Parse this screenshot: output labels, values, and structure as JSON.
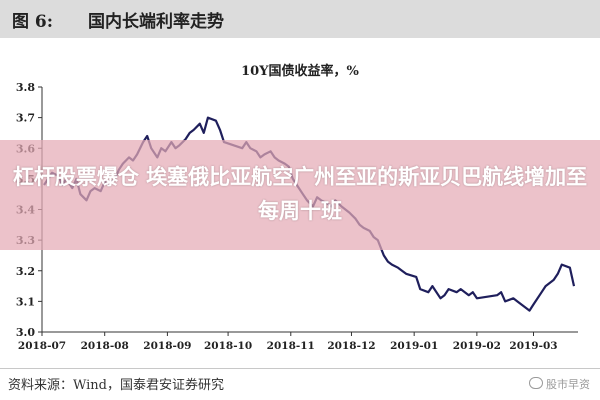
{
  "figure": {
    "label": "图 6:",
    "title": "国内长端利率走势"
  },
  "chart_data": {
    "type": "line",
    "title": "10Y国债收益率，%",
    "xlabel": "",
    "ylabel": "",
    "ylim": [
      3.0,
      3.8
    ],
    "yticks": [
      "3.0",
      "3.1",
      "3.2",
      "3.3",
      "3.4",
      "3.5",
      "3.6",
      "3.7",
      "3.8"
    ],
    "xticks": [
      "2018-07",
      "2018-08",
      "2018-09",
      "2018-10",
      "2018-11",
      "2018-12",
      "2019-01",
      "2019-02",
      "2019-03"
    ],
    "grid": false,
    "line_color": "#1f1f5c",
    "series": [
      {
        "name": "",
        "x": [
          "2018-07-02",
          "2018-07-04",
          "2018-07-06",
          "2018-07-09",
          "2018-07-11",
          "2018-07-13",
          "2018-07-16",
          "2018-07-18",
          "2018-07-20",
          "2018-07-23",
          "2018-07-25",
          "2018-07-27",
          "2018-07-30",
          "2018-08-01",
          "2018-08-03",
          "2018-08-06",
          "2018-08-08",
          "2018-08-10",
          "2018-08-13",
          "2018-08-15",
          "2018-08-17",
          "2018-08-20",
          "2018-08-22",
          "2018-08-24",
          "2018-08-27",
          "2018-08-29",
          "2018-08-31",
          "2018-09-03",
          "2018-09-05",
          "2018-09-07",
          "2018-09-10",
          "2018-09-12",
          "2018-09-14",
          "2018-09-17",
          "2018-09-19",
          "2018-09-21",
          "2018-09-25",
          "2018-09-27",
          "2018-09-29",
          "2018-10-08",
          "2018-10-10",
          "2018-10-12",
          "2018-10-15",
          "2018-10-17",
          "2018-10-19",
          "2018-10-22",
          "2018-10-24",
          "2018-10-26",
          "2018-10-29",
          "2018-10-31",
          "2018-11-02",
          "2018-11-05",
          "2018-11-07",
          "2018-11-09",
          "2018-11-12",
          "2018-11-14",
          "2018-11-16",
          "2018-11-19",
          "2018-11-21",
          "2018-11-23",
          "2018-11-26",
          "2018-11-28",
          "2018-11-30",
          "2018-12-03",
          "2018-12-05",
          "2018-12-07",
          "2018-12-10",
          "2018-12-12",
          "2018-12-14",
          "2018-12-17",
          "2018-12-19",
          "2018-12-21",
          "2018-12-24",
          "2018-12-26",
          "2018-12-28",
          "2019-01-02",
          "2019-01-04",
          "2019-01-08",
          "2019-01-10",
          "2019-01-14",
          "2019-01-16",
          "2019-01-18",
          "2019-01-22",
          "2019-01-24",
          "2019-01-28",
          "2019-01-30",
          "2019-02-01",
          "2019-02-11",
          "2019-02-13",
          "2019-02-15",
          "2019-02-19",
          "2019-02-21",
          "2019-02-25",
          "2019-02-27",
          "2019-03-01",
          "2019-03-05",
          "2019-03-07",
          "2019-03-11",
          "2019-03-13",
          "2019-03-15",
          "2019-03-19",
          "2019-03-21"
        ],
        "values": [
          3.48,
          3.5,
          3.52,
          3.51,
          3.48,
          3.5,
          3.47,
          3.5,
          3.45,
          3.43,
          3.46,
          3.47,
          3.46,
          3.49,
          3.48,
          3.5,
          3.53,
          3.55,
          3.57,
          3.56,
          3.58,
          3.62,
          3.64,
          3.6,
          3.57,
          3.6,
          3.59,
          3.62,
          3.6,
          3.61,
          3.63,
          3.65,
          3.66,
          3.68,
          3.65,
          3.7,
          3.69,
          3.66,
          3.62,
          3.6,
          3.62,
          3.6,
          3.59,
          3.57,
          3.58,
          3.59,
          3.57,
          3.56,
          3.55,
          3.54,
          3.5,
          3.47,
          3.45,
          3.43,
          3.41,
          3.44,
          3.43,
          3.42,
          3.41,
          3.43,
          3.41,
          3.4,
          3.39,
          3.37,
          3.35,
          3.34,
          3.33,
          3.31,
          3.3,
          3.25,
          3.23,
          3.22,
          3.21,
          3.2,
          3.19,
          3.18,
          3.14,
          3.13,
          3.15,
          3.11,
          3.12,
          3.14,
          3.13,
          3.14,
          3.12,
          3.13,
          3.11,
          3.12,
          3.13,
          3.1,
          3.11,
          3.1,
          3.08,
          3.07,
          3.09,
          3.13,
          3.15,
          3.17,
          3.19,
          3.22,
          3.21,
          3.15
        ]
      }
    ]
  },
  "overlay": {
    "headline": "杠杆股票爆仓 埃塞俄比亚航空广州至亚的斯亚贝巴航线增加至每周十班"
  },
  "source_note": "资料来源：Wind，国泰君安证券研究",
  "watermark": "股市早资"
}
